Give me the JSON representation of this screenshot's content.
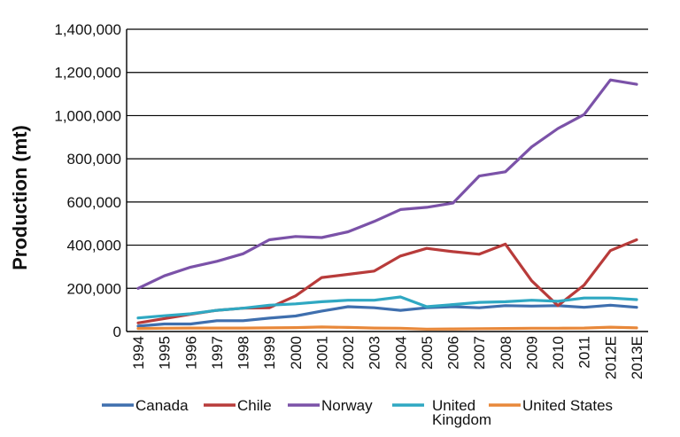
{
  "chart_data": {
    "type": "line",
    "title": "",
    "xlabel": "",
    "ylabel": "Production (mt)",
    "ylim": [
      0,
      1400000
    ],
    "yticks": [
      0,
      200000,
      400000,
      600000,
      800000,
      1000000,
      1200000,
      1400000
    ],
    "ytick_labels": [
      "0",
      "200,000",
      "400,000",
      "600,000",
      "800,000",
      "1,000,000",
      "1,200,000",
      "1,400,000"
    ],
    "grid": "horizontal",
    "legend_position": "bottom",
    "categories": [
      "1994",
      "1995",
      "1996",
      "1997",
      "1998",
      "1999",
      "2000",
      "2001",
      "2002",
      "2003",
      "2004",
      "2005",
      "2006",
      "2007",
      "2008",
      "2009",
      "2010",
      "2011",
      "2012E",
      "2013E"
    ],
    "series": [
      {
        "name": "Canada",
        "color": "#3f6fae",
        "values": [
          25000,
          35000,
          35000,
          50000,
          50000,
          62000,
          72000,
          95000,
          115000,
          110000,
          98000,
          110000,
          115000,
          110000,
          120000,
          118000,
          120000,
          112000,
          122000,
          112000
        ]
      },
      {
        "name": "Chile",
        "color": "#b83b3a",
        "values": [
          40000,
          60000,
          80000,
          98000,
          108000,
          110000,
          165000,
          250000,
          265000,
          280000,
          350000,
          385000,
          370000,
          358000,
          405000,
          235000,
          120000,
          215000,
          375000,
          425000
        ]
      },
      {
        "name": "Norway",
        "color": "#7b52a8",
        "values": [
          200000,
          258000,
          298000,
          325000,
          360000,
          425000,
          440000,
          435000,
          462000,
          510000,
          565000,
          575000,
          595000,
          720000,
          740000,
          855000,
          940000,
          1005000,
          1165000,
          1145000
        ]
      },
      {
        "name": "United Kingdom",
        "color": "#2fa8c2",
        "values": [
          63000,
          73000,
          82000,
          98000,
          108000,
          122000,
          128000,
          138000,
          145000,
          145000,
          160000,
          115000,
          125000,
          135000,
          138000,
          145000,
          140000,
          155000,
          155000,
          148000
        ]
      },
      {
        "name": "United States",
        "color": "#e8883a",
        "values": [
          14000,
          15000,
          16000,
          16000,
          16000,
          17000,
          18000,
          21000,
          19000,
          16000,
          15000,
          11000,
          12000,
          13000,
          14000,
          15000,
          15000,
          16000,
          20000,
          17000
        ]
      }
    ]
  }
}
